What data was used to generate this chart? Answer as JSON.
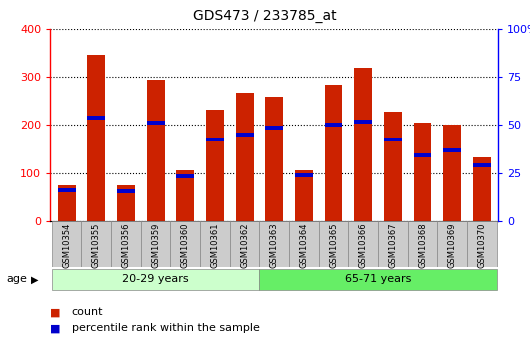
{
  "title": "GDS473 / 233785_at",
  "samples": [
    "GSM10354",
    "GSM10355",
    "GSM10356",
    "GSM10359",
    "GSM10360",
    "GSM10361",
    "GSM10362",
    "GSM10363",
    "GSM10364",
    "GSM10365",
    "GSM10366",
    "GSM10367",
    "GSM10368",
    "GSM10369",
    "GSM10370"
  ],
  "count": [
    75,
    347,
    75,
    295,
    107,
    232,
    268,
    258,
    107,
    283,
    320,
    228,
    205,
    200,
    133
  ],
  "percentile_count": [
    65,
    215,
    62,
    205,
    93,
    170,
    180,
    193,
    95,
    200,
    207,
    170,
    138,
    148,
    117
  ],
  "group1_label": "20-29 years",
  "group1_count": 7,
  "group2_label": "65-71 years",
  "group2_count": 8,
  "age_label": "age",
  "ylim_left": [
    0,
    400
  ],
  "ylim_right": [
    0,
    100
  ],
  "yticks_left": [
    0,
    100,
    200,
    300,
    400
  ],
  "yticks_right": [
    0,
    25,
    50,
    75,
    100
  ],
  "bar_color": "#cc2200",
  "percentile_color": "#0000cc",
  "grid_color": "#000000",
  "bg_color": "#ffffff",
  "legend_count_label": "count",
  "legend_pct_label": "percentile rank within the sample",
  "group1_bg": "#ccffcc",
  "group2_bg": "#66ee66",
  "tick_bg": "#cccccc",
  "bar_width": 0.6,
  "pct_bar_height": 8
}
